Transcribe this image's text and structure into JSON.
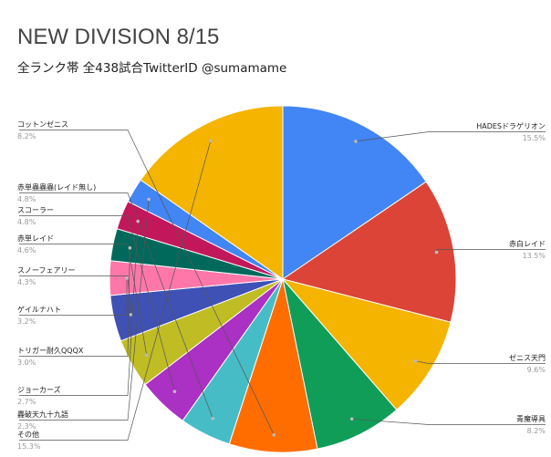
{
  "chart_data": {
    "type": "pie",
    "title": "NEW DIVISION 8/15",
    "subtitle": "全ランク帯 全438試合TwitterID @sumamame",
    "unit": "%",
    "slices": [
      {
        "label": "HADESドラゲリオン",
        "value": 15.5,
        "display": "15.5%",
        "color": "#4285f4"
      },
      {
        "label": "赤白レイド",
        "value": 13.5,
        "display": "13.5%",
        "color": "#db4437"
      },
      {
        "label": "ゼニス天門",
        "value": 9.6,
        "display": "9.6%",
        "color": "#f4b400"
      },
      {
        "label": "青魔導具",
        "value": 8.2,
        "display": "8.2%",
        "color": "#0f9d58"
      },
      {
        "label": "コットンゼニス",
        "value": 8.2,
        "display": "8.2%",
        "color": "#ff6d00"
      },
      {
        "label": "赤単蟲蟲蟲(レイド無し)",
        "value": 4.8,
        "display": "4.8%",
        "color": "#46bdc6"
      },
      {
        "label": "スコーラー",
        "value": 4.8,
        "display": "4.8%",
        "color": "#ab30c4"
      },
      {
        "label": "赤単レイド",
        "value": 4.6,
        "display": "4.6%",
        "color": "#c0bc24"
      },
      {
        "label": "スノーフェアリー",
        "value": 4.3,
        "display": "4.3%",
        "color": "#3f51b5"
      },
      {
        "label": "ゲイルナハト",
        "value": 3.2,
        "display": "3.2%",
        "color": "#ff77a9"
      },
      {
        "label": "トリガー耐久QQQX",
        "value": 3.0,
        "display": "3.0%",
        "color": "#00695c"
      },
      {
        "label": "ジョーカーズ",
        "value": 2.7,
        "display": "2.7%",
        "color": "#c2185b"
      },
      {
        "label": "轟破天九十九語",
        "value": 2.3,
        "display": "2.3%",
        "color": "#4285f4"
      },
      {
        "label": "その他",
        "value": 15.3,
        "display": "15.3%",
        "color": "#f4b400"
      }
    ],
    "legend": "none",
    "labels": "leader-lines"
  }
}
